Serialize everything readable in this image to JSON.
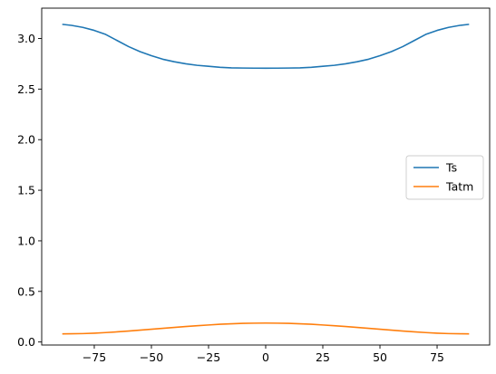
{
  "chart_data": {
    "type": "line",
    "title": "",
    "xlabel": "",
    "ylabel": "",
    "xlim": [
      -98,
      98
    ],
    "ylim": [
      -0.03,
      3.3
    ],
    "xticks": [
      -75,
      -50,
      -25,
      0,
      25,
      50,
      75
    ],
    "xtick_labels": [
      "−75",
      "−50",
      "−25",
      "0",
      "25",
      "50",
      "75"
    ],
    "yticks": [
      0.0,
      0.5,
      1.0,
      1.5,
      2.0,
      2.5,
      3.0
    ],
    "ytick_labels": [
      "0.0",
      "0.5",
      "1.0",
      "1.5",
      "2.0",
      "2.5",
      "3.0"
    ],
    "grid": false,
    "legend_position": "center-right",
    "x": [
      -89,
      -85,
      -80,
      -75,
      -70,
      -65,
      -60,
      -55,
      -50,
      -45,
      -40,
      -35,
      -30,
      -25,
      -20,
      -15,
      -10,
      -5,
      0,
      5,
      10,
      15,
      20,
      25,
      30,
      35,
      40,
      45,
      50,
      55,
      60,
      65,
      70,
      75,
      80,
      85,
      89
    ],
    "series": [
      {
        "name": "Ts",
        "color": "#1f77b4",
        "values": [
          3.14,
          3.13,
          3.11,
          3.08,
          3.04,
          2.98,
          2.92,
          2.87,
          2.83,
          2.795,
          2.77,
          2.75,
          2.735,
          2.725,
          2.715,
          2.71,
          2.708,
          2.707,
          2.706,
          2.707,
          2.708,
          2.71,
          2.715,
          2.725,
          2.735,
          2.75,
          2.77,
          2.795,
          2.83,
          2.87,
          2.92,
          2.98,
          3.04,
          3.08,
          3.11,
          3.13,
          3.14
        ]
      },
      {
        "name": "Tatm",
        "color": "#ff7f0e",
        "values": [
          0.08,
          0.081,
          0.083,
          0.087,
          0.093,
          0.1,
          0.108,
          0.117,
          0.126,
          0.135,
          0.144,
          0.153,
          0.161,
          0.168,
          0.175,
          0.18,
          0.184,
          0.186,
          0.187,
          0.186,
          0.184,
          0.18,
          0.175,
          0.168,
          0.161,
          0.153,
          0.144,
          0.135,
          0.126,
          0.117,
          0.108,
          0.1,
          0.093,
          0.087,
          0.083,
          0.081,
          0.08
        ]
      }
    ]
  }
}
